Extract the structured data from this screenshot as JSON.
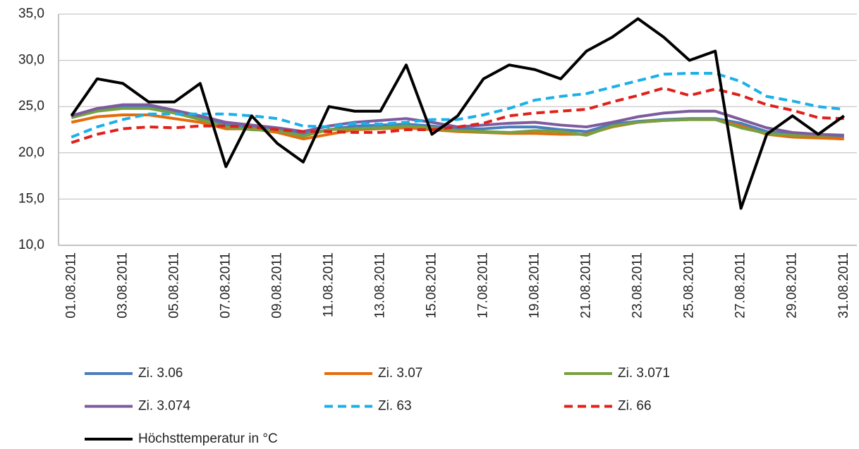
{
  "chart_data": {
    "type": "line",
    "categories": [
      "01.08.2011",
      null,
      "03.08.2011",
      null,
      "05.08.2011",
      null,
      "07.08.2011",
      null,
      "09.08.2011",
      null,
      "11.08.2011",
      null,
      "13.08.2011",
      null,
      "15.08.2011",
      null,
      "17.08.2011",
      null,
      "19.08.2011",
      null,
      "21.08.2011",
      null,
      "23.08.2011",
      null,
      "25.08.2011",
      null,
      "27.08.2011",
      null,
      "29.08.2011",
      null,
      "31.08.2011"
    ],
    "ylim": [
      10,
      35
    ],
    "yticks": [
      {
        "value": 10,
        "label": "10,0"
      },
      {
        "value": 15,
        "label": "15,0"
      },
      {
        "value": 20,
        "label": "20,0"
      },
      {
        "value": 25,
        "label": "25,0"
      },
      {
        "value": 30,
        "label": "30,0"
      },
      {
        "value": 35,
        "label": "35,0"
      }
    ],
    "grid": true,
    "series": [
      {
        "name": "Zi. 3.06",
        "color": "#4a7ebb",
        "dash": false,
        "values": [
          23.9,
          24.6,
          25.0,
          25.0,
          24.4,
          23.8,
          23.0,
          22.7,
          22.5,
          22.0,
          22.5,
          22.9,
          23.0,
          23.1,
          22.9,
          22.6,
          22.6,
          22.8,
          22.8,
          22.5,
          22.3,
          23.1,
          23.4,
          23.6,
          23.7,
          23.7,
          23.2,
          22.3,
          22.0,
          21.8,
          21.7
        ]
      },
      {
        "name": "Zi. 3.07",
        "color": "#e46c0a",
        "dash": false,
        "values": [
          23.3,
          23.9,
          24.1,
          24.1,
          23.7,
          23.3,
          22.6,
          22.6,
          22.2,
          21.5,
          22.0,
          22.5,
          22.6,
          22.7,
          22.5,
          22.3,
          22.2,
          22.1,
          22.1,
          22.0,
          22.0,
          22.8,
          23.3,
          23.5,
          23.6,
          23.6,
          22.9,
          22.0,
          21.7,
          21.6,
          21.5
        ]
      },
      {
        "name": "Zi. 3.071",
        "color": "#77a040",
        "dash": false,
        "values": [
          23.8,
          24.5,
          24.8,
          24.8,
          24.3,
          23.6,
          22.8,
          22.5,
          22.4,
          21.8,
          22.5,
          22.6,
          22.7,
          22.9,
          22.7,
          22.4,
          22.3,
          22.2,
          22.4,
          22.3,
          21.9,
          22.9,
          23.3,
          23.5,
          23.6,
          23.6,
          22.7,
          22.1,
          21.9,
          21.9,
          21.9
        ]
      },
      {
        "name": "Zi. 3.074",
        "color": "#7d5b9e",
        "dash": false,
        "values": [
          24.0,
          24.8,
          25.2,
          25.2,
          24.6,
          24.0,
          23.3,
          23.0,
          22.7,
          22.3,
          22.9,
          23.3,
          23.5,
          23.7,
          23.3,
          22.8,
          23.0,
          23.2,
          23.3,
          23.0,
          22.8,
          23.3,
          23.9,
          24.3,
          24.5,
          24.5,
          23.6,
          22.7,
          22.2,
          22.0,
          21.9
        ]
      },
      {
        "name": "Zi. 63",
        "color": "#1cb0e8",
        "dash": true,
        "values": [
          21.7,
          22.8,
          23.6,
          24.2,
          24.2,
          24.2,
          24.2,
          24.0,
          23.7,
          22.9,
          22.8,
          23.2,
          23.1,
          23.3,
          23.6,
          23.6,
          24.1,
          24.8,
          25.7,
          26.1,
          26.4,
          27.1,
          27.8,
          28.5,
          28.6,
          28.6,
          27.7,
          26.1,
          25.6,
          25.0,
          24.7
        ]
      },
      {
        "name": "Zi. 66",
        "color": "#e0201b",
        "dash": true,
        "values": [
          21.1,
          22.0,
          22.6,
          22.8,
          22.7,
          22.9,
          22.9,
          22.8,
          22.5,
          22.3,
          22.3,
          22.2,
          22.2,
          22.5,
          22.5,
          22.8,
          23.2,
          24.0,
          24.3,
          24.5,
          24.7,
          25.5,
          26.2,
          27.0,
          26.2,
          26.9,
          26.2,
          25.2,
          24.6,
          23.8,
          23.7
        ]
      },
      {
        "name": "Höchsttemperatur in °C",
        "color": "#000000",
        "dash": false,
        "values": [
          24,
          28,
          27.5,
          25.5,
          25.5,
          27.5,
          18.5,
          24,
          21,
          19,
          25,
          24.5,
          24.5,
          29.5,
          22,
          24,
          28,
          29.5,
          29,
          28,
          31,
          32.5,
          34.5,
          32.5,
          30,
          31,
          14,
          22,
          24,
          22,
          24
        ]
      }
    ]
  }
}
